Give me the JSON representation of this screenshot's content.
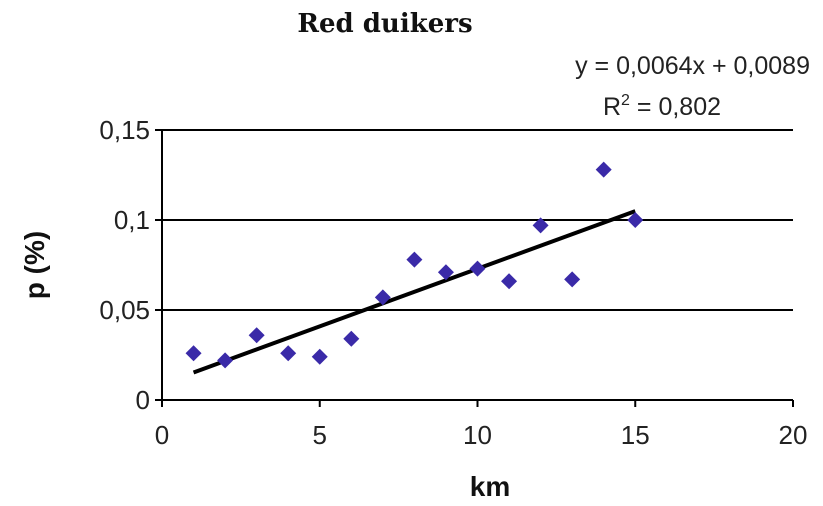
{
  "chart_data": {
    "type": "scatter",
    "title": "Red duikers",
    "xlabel": "km",
    "ylabel": "p (%)",
    "xlim": [
      0,
      20
    ],
    "ylim": [
      0,
      0.15
    ],
    "x_ticks": [
      0,
      5,
      10,
      15,
      20
    ],
    "x_tick_labels": [
      "0",
      "5",
      "10",
      "15",
      "20"
    ],
    "y_ticks": [
      0,
      0.05,
      0.1,
      0.15
    ],
    "y_tick_labels": [
      "0",
      "0,05",
      "0,1",
      "0,15"
    ],
    "grid": "horizontal",
    "point_color": "#3a2aa8",
    "trendline_color": "#000000",
    "points": [
      {
        "x": 1,
        "y": 0.026
      },
      {
        "x": 2,
        "y": 0.022
      },
      {
        "x": 3,
        "y": 0.036
      },
      {
        "x": 4,
        "y": 0.026
      },
      {
        "x": 5,
        "y": 0.024
      },
      {
        "x": 6,
        "y": 0.034
      },
      {
        "x": 7,
        "y": 0.057
      },
      {
        "x": 8,
        "y": 0.078
      },
      {
        "x": 9,
        "y": 0.071
      },
      {
        "x": 10,
        "y": 0.073
      },
      {
        "x": 11,
        "y": 0.066
      },
      {
        "x": 12,
        "y": 0.097
      },
      {
        "x": 13,
        "y": 0.067
      },
      {
        "x": 14,
        "y": 0.128
      },
      {
        "x": 15,
        "y": 0.1
      }
    ],
    "trendline": {
      "slope": 0.0064,
      "intercept": 0.0089,
      "x_range": [
        1,
        15
      ],
      "equation_text": "y = 0,0064x + 0,0089",
      "r2_label": "R",
      "r2_sup": "2",
      "r2_value_text": " = 0,802"
    }
  }
}
